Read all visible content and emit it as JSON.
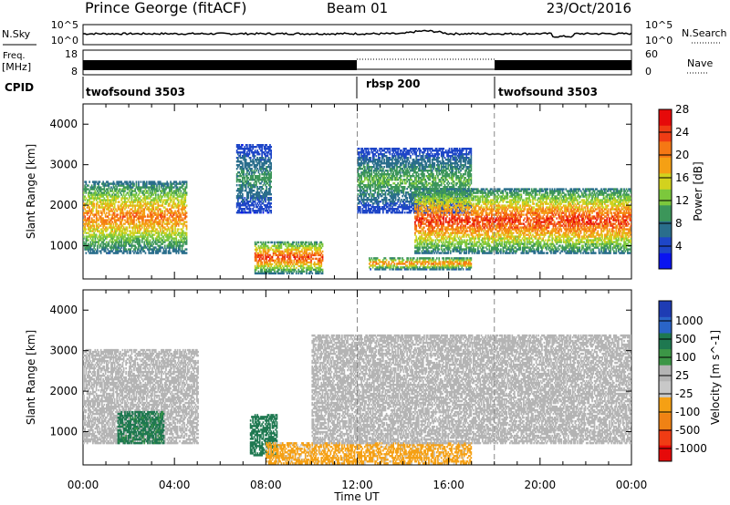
{
  "header": {
    "station": "Prince George (fitACF)",
    "beam": "Beam 01",
    "date": "23/Oct/2016"
  },
  "panels": {
    "nsky": {
      "label": "N.Sky",
      "tick_hi": "10^5",
      "tick_lo": "10^0",
      "right_label": "N.Search",
      "right_tick_hi": "10^5",
      "right_tick_lo": "10^0"
    },
    "freq": {
      "label_top": "Freq.",
      "label_unit": "[MHz]",
      "tick_hi": "18",
      "tick_lo": "8",
      "right_label": "Nave",
      "right_tick_hi": "60",
      "right_tick_lo": "0"
    },
    "cpid": {
      "label": "CPID",
      "segments": [
        {
          "name": "twofsound 3503",
          "start": 0,
          "end": 12
        },
        {
          "name": "rbsp 200",
          "start": 12,
          "end": 18
        },
        {
          "name": "twofsound 3503",
          "start": 18,
          "end": 24
        }
      ]
    }
  },
  "power_panel": {
    "ylabel": "Slant Range [km]",
    "cbar_label": "Power [dB]",
    "cbar_ticks": [
      "4",
      "8",
      "12",
      "16",
      "20",
      "24",
      "28"
    ],
    "cbar_colors": [
      "#0a14f0",
      "#1e46c8",
      "#2a6e8c",
      "#3c965a",
      "#7cc83c",
      "#d2d21e",
      "#f5a014",
      "#f57814",
      "#f03c14",
      "#e60a0a"
    ]
  },
  "velocity_panel": {
    "ylabel": "Slant Range [km]",
    "cbar_label": "Velocity [m s^-1]",
    "cbar_ticks": [
      "1000",
      "500",
      "100",
      "25",
      "-25",
      "-100",
      "-500",
      "-1000"
    ],
    "cbar_colors": [
      "#1e3cb4",
      "#2a64c8",
      "#1e7850",
      "#3c9646",
      "#b4b4b4",
      "#c8c8c8",
      "#f5a014",
      "#f08214",
      "#f03c14",
      "#e60a0a"
    ]
  },
  "xaxis": {
    "label": "Time UT",
    "ticks": [
      "00:00",
      "04:00",
      "08:00",
      "12:00",
      "16:00",
      "20:00",
      "00:00"
    ]
  },
  "chart_data": {
    "type": "heatmap",
    "title": "Prince George (fitACF) Beam 01 23/Oct/2016",
    "xlabel": "Time UT",
    "ylabel": "Slant Range [km]",
    "xlim_hours": [
      0,
      24
    ],
    "ylim_km": [
      180,
      4500
    ],
    "ytick_values": [
      1000,
      2000,
      3000,
      4000
    ],
    "mode_changes_hours": [
      12,
      18
    ],
    "power_db_range": [
      0,
      30
    ],
    "velocity_range": [
      -1000,
      1000
    ],
    "frequency_mhz_range": [
      8,
      18
    ],
    "scatter_regions_power": [
      {
        "t_start": 0.0,
        "t_end": 4.5,
        "r_min": 800,
        "r_max": 2600,
        "peak_db": 26
      },
      {
        "t_start": 6.7,
        "t_end": 8.2,
        "r_min": 1800,
        "r_max": 3500,
        "peak_db": 12
      },
      {
        "t_start": 7.5,
        "t_end": 10.5,
        "r_min": 300,
        "r_max": 1100,
        "peak_db": 30
      },
      {
        "t_start": 12.0,
        "t_end": 17.0,
        "r_min": 1800,
        "r_max": 3400,
        "peak_db": 14
      },
      {
        "t_start": 14.5,
        "t_end": 24.0,
        "r_min": 800,
        "r_max": 2400,
        "peak_db": 30
      },
      {
        "t_start": 12.5,
        "t_end": 17.0,
        "r_min": 400,
        "r_max": 700,
        "peak_db": 26
      }
    ],
    "scatter_regions_velocity": [
      {
        "t_start": 0.0,
        "t_end": 5.0,
        "r_min": 700,
        "r_max": 3000,
        "velocity": -20
      },
      {
        "t_start": 1.5,
        "t_end": 3.5,
        "r_min": 700,
        "r_max": 1500,
        "velocity": 150
      },
      {
        "t_start": 7.3,
        "t_end": 8.5,
        "r_min": 400,
        "r_max": 1400,
        "velocity": 400
      },
      {
        "t_start": 8.0,
        "t_end": 17.0,
        "r_min": 200,
        "r_max": 700,
        "velocity": -150
      },
      {
        "t_start": 10.0,
        "t_end": 24.0,
        "r_min": 700,
        "r_max": 3400,
        "velocity": 0
      }
    ]
  }
}
